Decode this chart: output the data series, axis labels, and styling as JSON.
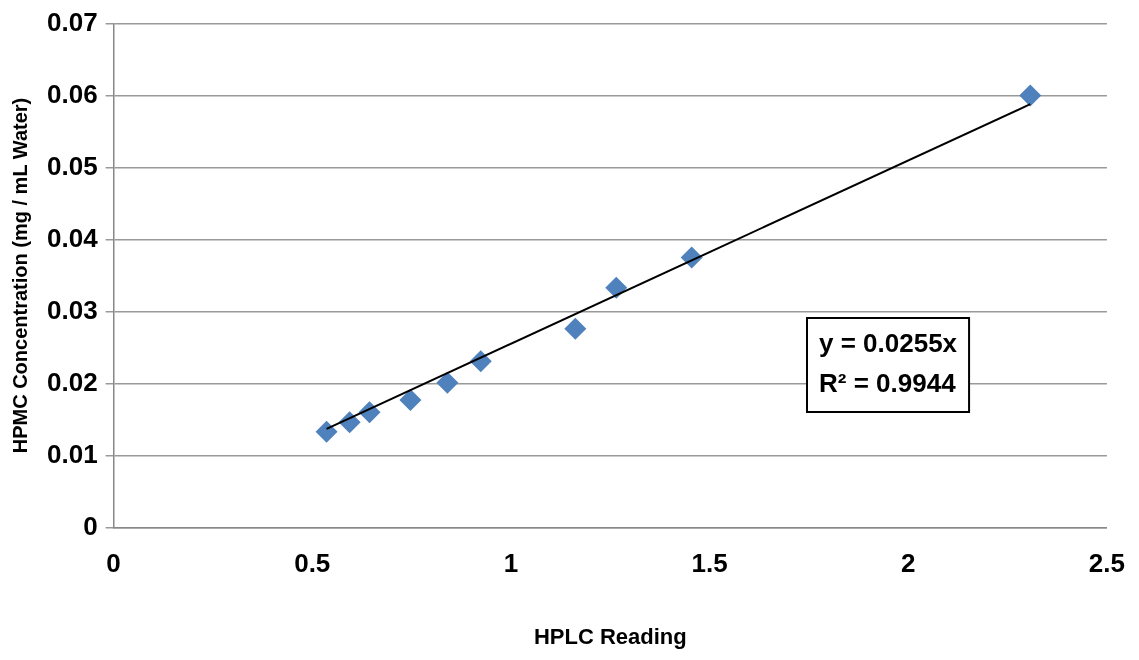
{
  "chart_data": {
    "type": "scatter",
    "xlabel": "HPLC Reading",
    "ylabel": "HPMC Concentration (mg / mL Water)",
    "xlim": [
      0,
      2.5
    ],
    "xticks": [
      0,
      0.5,
      1,
      1.5,
      2,
      2.5
    ],
    "ylim": [
      0,
      0.07
    ],
    "yticks": [
      0,
      0.01,
      0.02,
      0.03,
      0.04,
      0.05,
      0.06,
      0.07
    ],
    "grid": "y",
    "marker": "diamond",
    "series": [
      {
        "type": "scatter",
        "color": "#4f81bd",
        "x": [
          0.536,
          0.594,
          0.644,
          0.747,
          0.84,
          0.924,
          1.162,
          1.265,
          1.455,
          2.307
        ],
        "values": [
          0.0133,
          0.0146,
          0.016,
          0.0177,
          0.0201,
          0.0231,
          0.0276,
          0.0333,
          0.0375,
          0.06
        ]
      },
      {
        "type": "line",
        "color": "#000000",
        "marker": "none",
        "x": [
          0.536,
          2.307
        ],
        "values": [
          0.0137,
          0.0588
        ]
      }
    ],
    "annotations": [
      "y = 0.0255x",
      "R² = 0.9944"
    ]
  }
}
